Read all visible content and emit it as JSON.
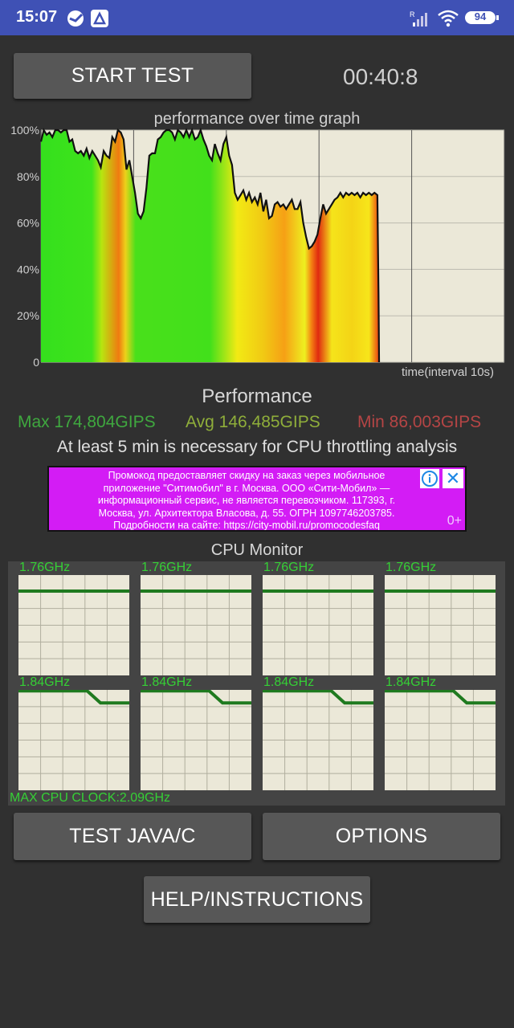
{
  "status_bar": {
    "time": "15:07",
    "battery": "94",
    "icons": [
      "sberbank-icon",
      "app-notification-icon",
      "signal-icon",
      "wifi-icon",
      "battery-icon"
    ]
  },
  "controls": {
    "start_test": "START TEST",
    "timer": "00:40:8",
    "test_java": "TEST JAVA/C",
    "options": "OPTIONS",
    "help": "HELP/INSTRUCTIONS"
  },
  "graph": {
    "title": "performance over time graph",
    "x_label": "time(interval 10s)"
  },
  "chart_data": {
    "type": "area",
    "title": "performance over time graph",
    "xlabel": "time(interval 10s)",
    "ylabel": "",
    "ylim": [
      0,
      100
    ],
    "y_ticks": [
      "100%",
      "80%",
      "60%",
      "40%",
      "20%",
      "0"
    ],
    "y_tick_values": [
      100,
      80,
      60,
      40,
      20,
      0
    ],
    "x_interval_seconds": 10,
    "vertical_gridlines": 5,
    "series": [
      {
        "points": [
          [
            0,
            95
          ],
          [
            1,
            100
          ],
          [
            2,
            98
          ],
          [
            3,
            99
          ],
          [
            4,
            97
          ],
          [
            5,
            100
          ],
          [
            6,
            100
          ],
          [
            7,
            99
          ],
          [
            8,
            100
          ],
          [
            9,
            100
          ],
          [
            10,
            95
          ],
          [
            11,
            96
          ],
          [
            12,
            91
          ],
          [
            13,
            90
          ],
          [
            14,
            91
          ],
          [
            15,
            89
          ],
          [
            16,
            92
          ],
          [
            17,
            88
          ],
          [
            18,
            91
          ],
          [
            19,
            89
          ],
          [
            20,
            87
          ],
          [
            21,
            84
          ],
          [
            22,
            91
          ],
          [
            23,
            89
          ],
          [
            24,
            88
          ],
          [
            25,
            97
          ],
          [
            26,
            95
          ],
          [
            27,
            100
          ],
          [
            28,
            99
          ],
          [
            29,
            96
          ],
          [
            30,
            83
          ],
          [
            31,
            87
          ],
          [
            32,
            80
          ],
          [
            33,
            73
          ],
          [
            34,
            64
          ],
          [
            35,
            62
          ],
          [
            36,
            65
          ],
          [
            37,
            75
          ],
          [
            38,
            89
          ],
          [
            39,
            90
          ],
          [
            40,
            90
          ],
          [
            41,
            96
          ],
          [
            42,
            97
          ],
          [
            43,
            99
          ],
          [
            44,
            100
          ],
          [
            45,
            100
          ],
          [
            46,
            99
          ],
          [
            47,
            96
          ],
          [
            48,
            100
          ],
          [
            49,
            99
          ],
          [
            50,
            97
          ],
          [
            51,
            100
          ],
          [
            52,
            97
          ],
          [
            53,
            100
          ],
          [
            54,
            96
          ],
          [
            55,
            97
          ],
          [
            56,
            100
          ],
          [
            57,
            96
          ],
          [
            58,
            93
          ],
          [
            59,
            89
          ],
          [
            60,
            87
          ],
          [
            61,
            94
          ],
          [
            62,
            90
          ],
          [
            63,
            87
          ],
          [
            64,
            94
          ],
          [
            65,
            97
          ],
          [
            66,
            89
          ],
          [
            67,
            85
          ],
          [
            68,
            73
          ],
          [
            69,
            70
          ],
          [
            70,
            72
          ],
          [
            71,
            74
          ],
          [
            72,
            70
          ],
          [
            73,
            73
          ],
          [
            74,
            69
          ],
          [
            75,
            71
          ],
          [
            76,
            68
          ],
          [
            77,
            73
          ],
          [
            78,
            65
          ],
          [
            79,
            70
          ],
          [
            80,
            62
          ],
          [
            81,
            63
          ],
          [
            82,
            68
          ],
          [
            83,
            69
          ],
          [
            84,
            67
          ],
          [
            85,
            68
          ],
          [
            86,
            66
          ],
          [
            87,
            68
          ],
          [
            88,
            70
          ],
          [
            89,
            66
          ],
          [
            90,
            66
          ],
          [
            91,
            69
          ],
          [
            92,
            60
          ],
          [
            93,
            54
          ],
          [
            94,
            49
          ],
          [
            95,
            50
          ],
          [
            96,
            52
          ],
          [
            97,
            55
          ],
          [
            98,
            62
          ],
          [
            99,
            68
          ],
          [
            100,
            64
          ],
          [
            101,
            66
          ],
          [
            102,
            68
          ],
          [
            103,
            70
          ],
          [
            104,
            71
          ],
          [
            105,
            73
          ],
          [
            106,
            71
          ],
          [
            107,
            73
          ],
          [
            108,
            72
          ],
          [
            109,
            73
          ],
          [
            110,
            72
          ],
          [
            111,
            73
          ],
          [
            112,
            71
          ],
          [
            113,
            73
          ],
          [
            114,
            72
          ],
          [
            115,
            73
          ],
          [
            116,
            72
          ],
          [
            117,
            73
          ],
          [
            118,
            72
          ],
          [
            118.4,
            30
          ],
          [
            118.6,
            0
          ]
        ]
      }
    ]
  },
  "performance": {
    "title": "Performance",
    "max": "Max 174,804GIPS",
    "avg": "Avg 146,485GIPS",
    "min": "Min 86,003GIPS",
    "note": "At least 5 min is necessary for CPU throttling analysis"
  },
  "ad": {
    "lines": [
      "Промокод предоставляет скидку на заказ через мобильное",
      "приложение \"Ситимобил\" в г. Москва. ООО «Сити-Мобил» —",
      "информационный сервис, не является перевозчиком. 117393, г.",
      "Москва, ул. Архитектора Власова, д. 55. ОГРН 1097746203785.",
      "Подробности на сайте: https://city-mobil.ru/promocodesfaq"
    ],
    "age_rating": "0+"
  },
  "cpu_monitor": {
    "title": "CPU Monitor",
    "cores": [
      {
        "freq": "1.76GHz",
        "level": 0.84,
        "drop": false
      },
      {
        "freq": "1.76GHz",
        "level": 0.84,
        "drop": false
      },
      {
        "freq": "1.76GHz",
        "level": 0.84,
        "drop": false
      },
      {
        "freq": "1.76GHz",
        "level": 0.84,
        "drop": false
      },
      {
        "freq": "1.84GHz",
        "level_start": 0.99,
        "level_end": 0.87,
        "drop": true
      },
      {
        "freq": "1.84GHz",
        "level_start": 0.99,
        "level_end": 0.87,
        "drop": true
      },
      {
        "freq": "1.84GHz",
        "level_start": 0.99,
        "level_end": 0.87,
        "drop": true
      },
      {
        "freq": "1.84GHz",
        "level_start": 0.99,
        "level_end": 0.87,
        "drop": true
      }
    ],
    "max_clock": "MAX CPU CLOCK:2.09GHz"
  },
  "colors": {
    "statusbar": "#3f51b5",
    "background": "#303030",
    "button": "#575757",
    "max": "#3fa83f",
    "avg": "#8fae3a",
    "min": "#b54545",
    "core_line": "#1f7a1f",
    "core_label": "#35d035"
  }
}
